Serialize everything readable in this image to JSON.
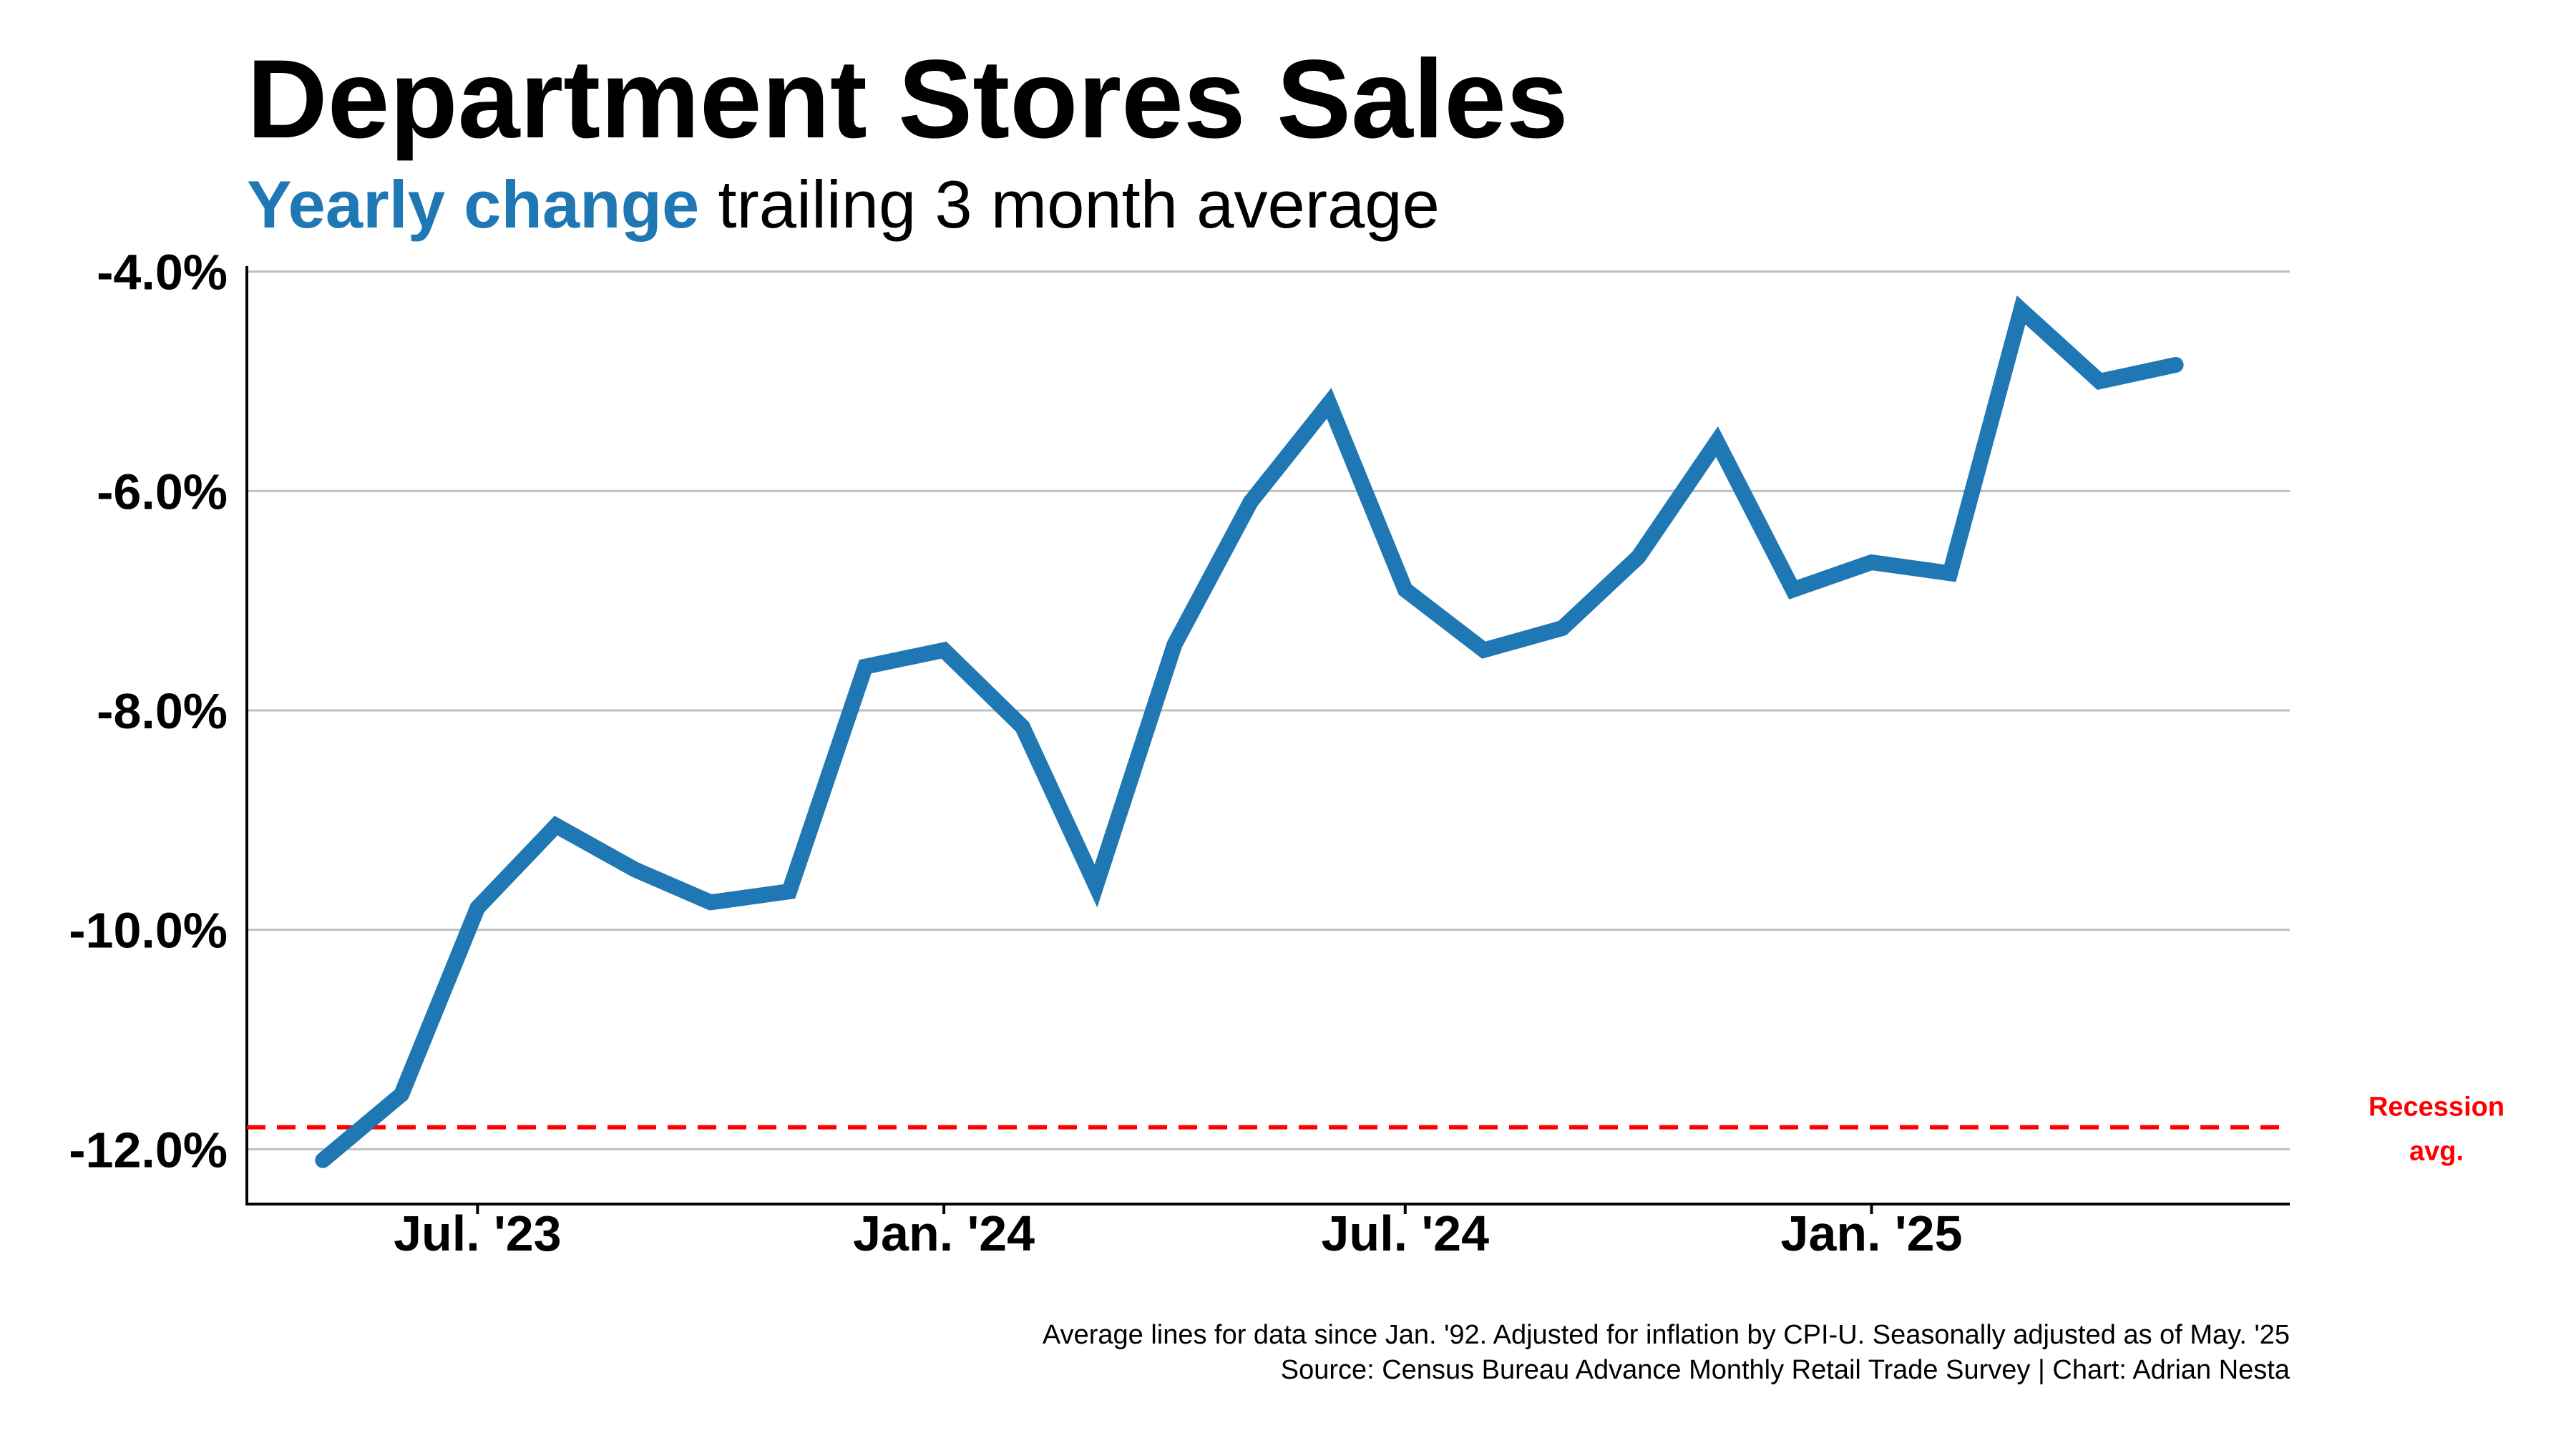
{
  "title": "Department Stores Sales",
  "subtitle": {
    "accent": "Yearly change",
    "rest": " trailing 3 month average"
  },
  "colors": {
    "series": "#1f77b4",
    "accent": "#1f77b4",
    "reference": "#ff0000",
    "grid": "#bfbfbf",
    "axis": "#000000"
  },
  "chart_data": {
    "type": "line",
    "title": "Department Stores Sales",
    "subtitle": "Yearly change trailing 3 month average",
    "xlabel": "",
    "ylabel": "",
    "x": [
      "2023-05",
      "2023-06",
      "2023-07",
      "2023-08",
      "2023-09",
      "2023-10",
      "2023-11",
      "2023-12",
      "2024-01",
      "2024-02",
      "2024-03",
      "2024-04",
      "2024-05",
      "2024-06",
      "2024-07",
      "2024-08",
      "2024-09",
      "2024-10",
      "2024-11",
      "2024-12",
      "2025-01",
      "2025-02",
      "2025-03",
      "2025-04",
      "2025-05"
    ],
    "series": [
      {
        "values": [
          -12.1,
          -11.5,
          -9.8,
          -9.05,
          -9.45,
          -9.75,
          -9.65,
          -7.6,
          -7.45,
          -8.15,
          -9.6,
          -7.4,
          -6.1,
          -5.2,
          -6.9,
          -7.45,
          -7.25,
          -6.6,
          -5.55,
          -6.9,
          -6.65,
          -6.75,
          -4.35,
          -5.0,
          -4.85
        ]
      }
    ],
    "reference_lines": [
      {
        "label": [
          "Recession",
          "avg."
        ],
        "value": -11.8
      }
    ],
    "y_ticks": [
      -4.0,
      -6.0,
      -8.0,
      -10.0,
      -12.0
    ],
    "y_tick_labels": [
      "-4.0%",
      "-6.0%",
      "-8.0%",
      "-10.0%",
      "-12.0%"
    ],
    "x_ticks": [
      "2023-07",
      "2024-01",
      "2024-07",
      "2025-01"
    ],
    "x_tick_labels": [
      "Jul. '23",
      "Jan. '24",
      "Jul. '24",
      "Jan. '25"
    ],
    "ylim": [
      -12.5,
      -3.95
    ],
    "xlim": [
      "2023-04-01",
      "2025-06-15"
    ],
    "grid": true,
    "legend": "none"
  },
  "footer": {
    "note": "Average lines for data since Jan. '92. Adjusted for inflation by CPI-U. Seasonally adjusted as of May. '25",
    "source": "Source: Census Bureau Advance Monthly Retail Trade Survey | Chart: Adrian Nesta"
  }
}
